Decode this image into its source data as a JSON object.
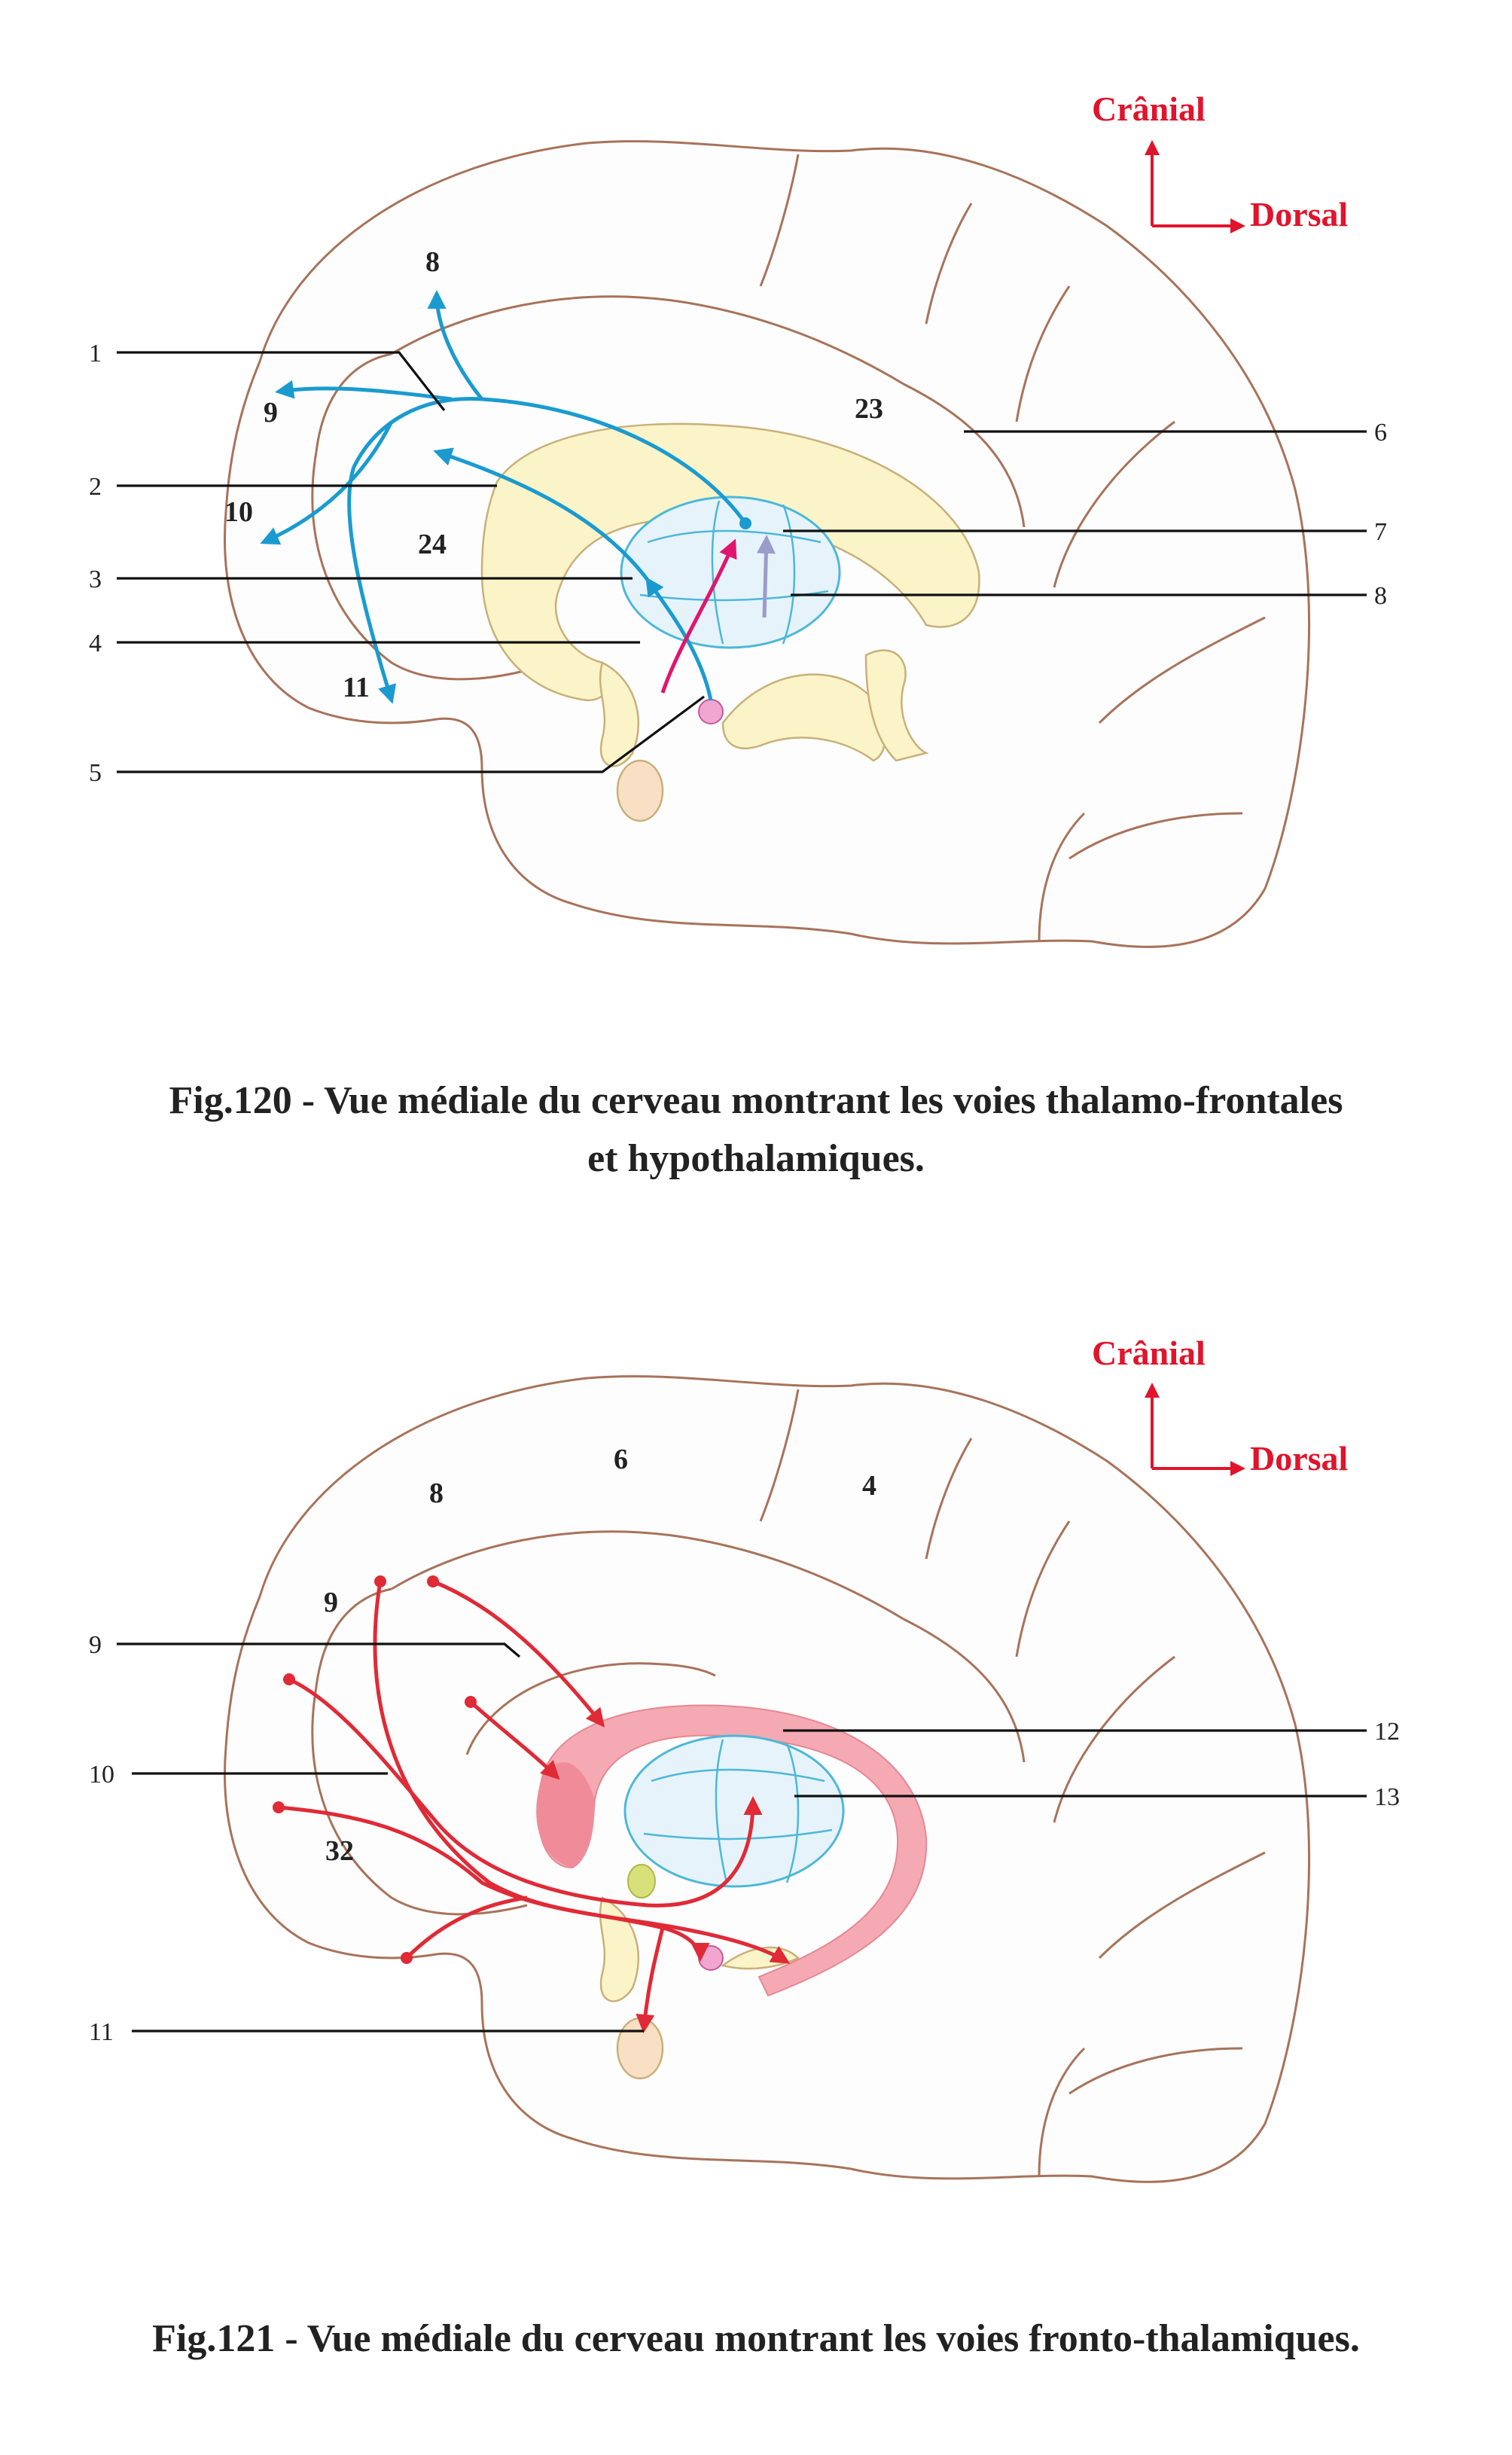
{
  "orientation": {
    "cranial": "Crânial",
    "dorsal": "Dorsal"
  },
  "fig120": {
    "caption_line1": "Fig.120 - Vue médiale du cerveau montrant les voies thalamo-frontales",
    "caption_line2": "et hypothalamiques.",
    "left_labels": [
      "1",
      "2",
      "3",
      "4",
      "5"
    ],
    "right_labels": [
      "6",
      "7",
      "8"
    ],
    "area_labels": [
      "8",
      "9",
      "10",
      "24",
      "11",
      "23"
    ]
  },
  "fig121": {
    "caption": "Fig.121 - Vue médiale du cerveau montrant les voies fronto-thalamiques.",
    "left_labels": [
      "9",
      "10",
      "11"
    ],
    "right_labels": [
      "12",
      "13"
    ],
    "area_labels": [
      "6",
      "4",
      "8",
      "9",
      "32"
    ]
  },
  "colors": {
    "outline": "#a8735a",
    "thalamus": "#e6f3fb",
    "corpus_callosum": "#fbf4c8",
    "blue_pathway": "#1a9bd0",
    "red_pathway": "#e02a36",
    "orientation": "#e0142b"
  }
}
